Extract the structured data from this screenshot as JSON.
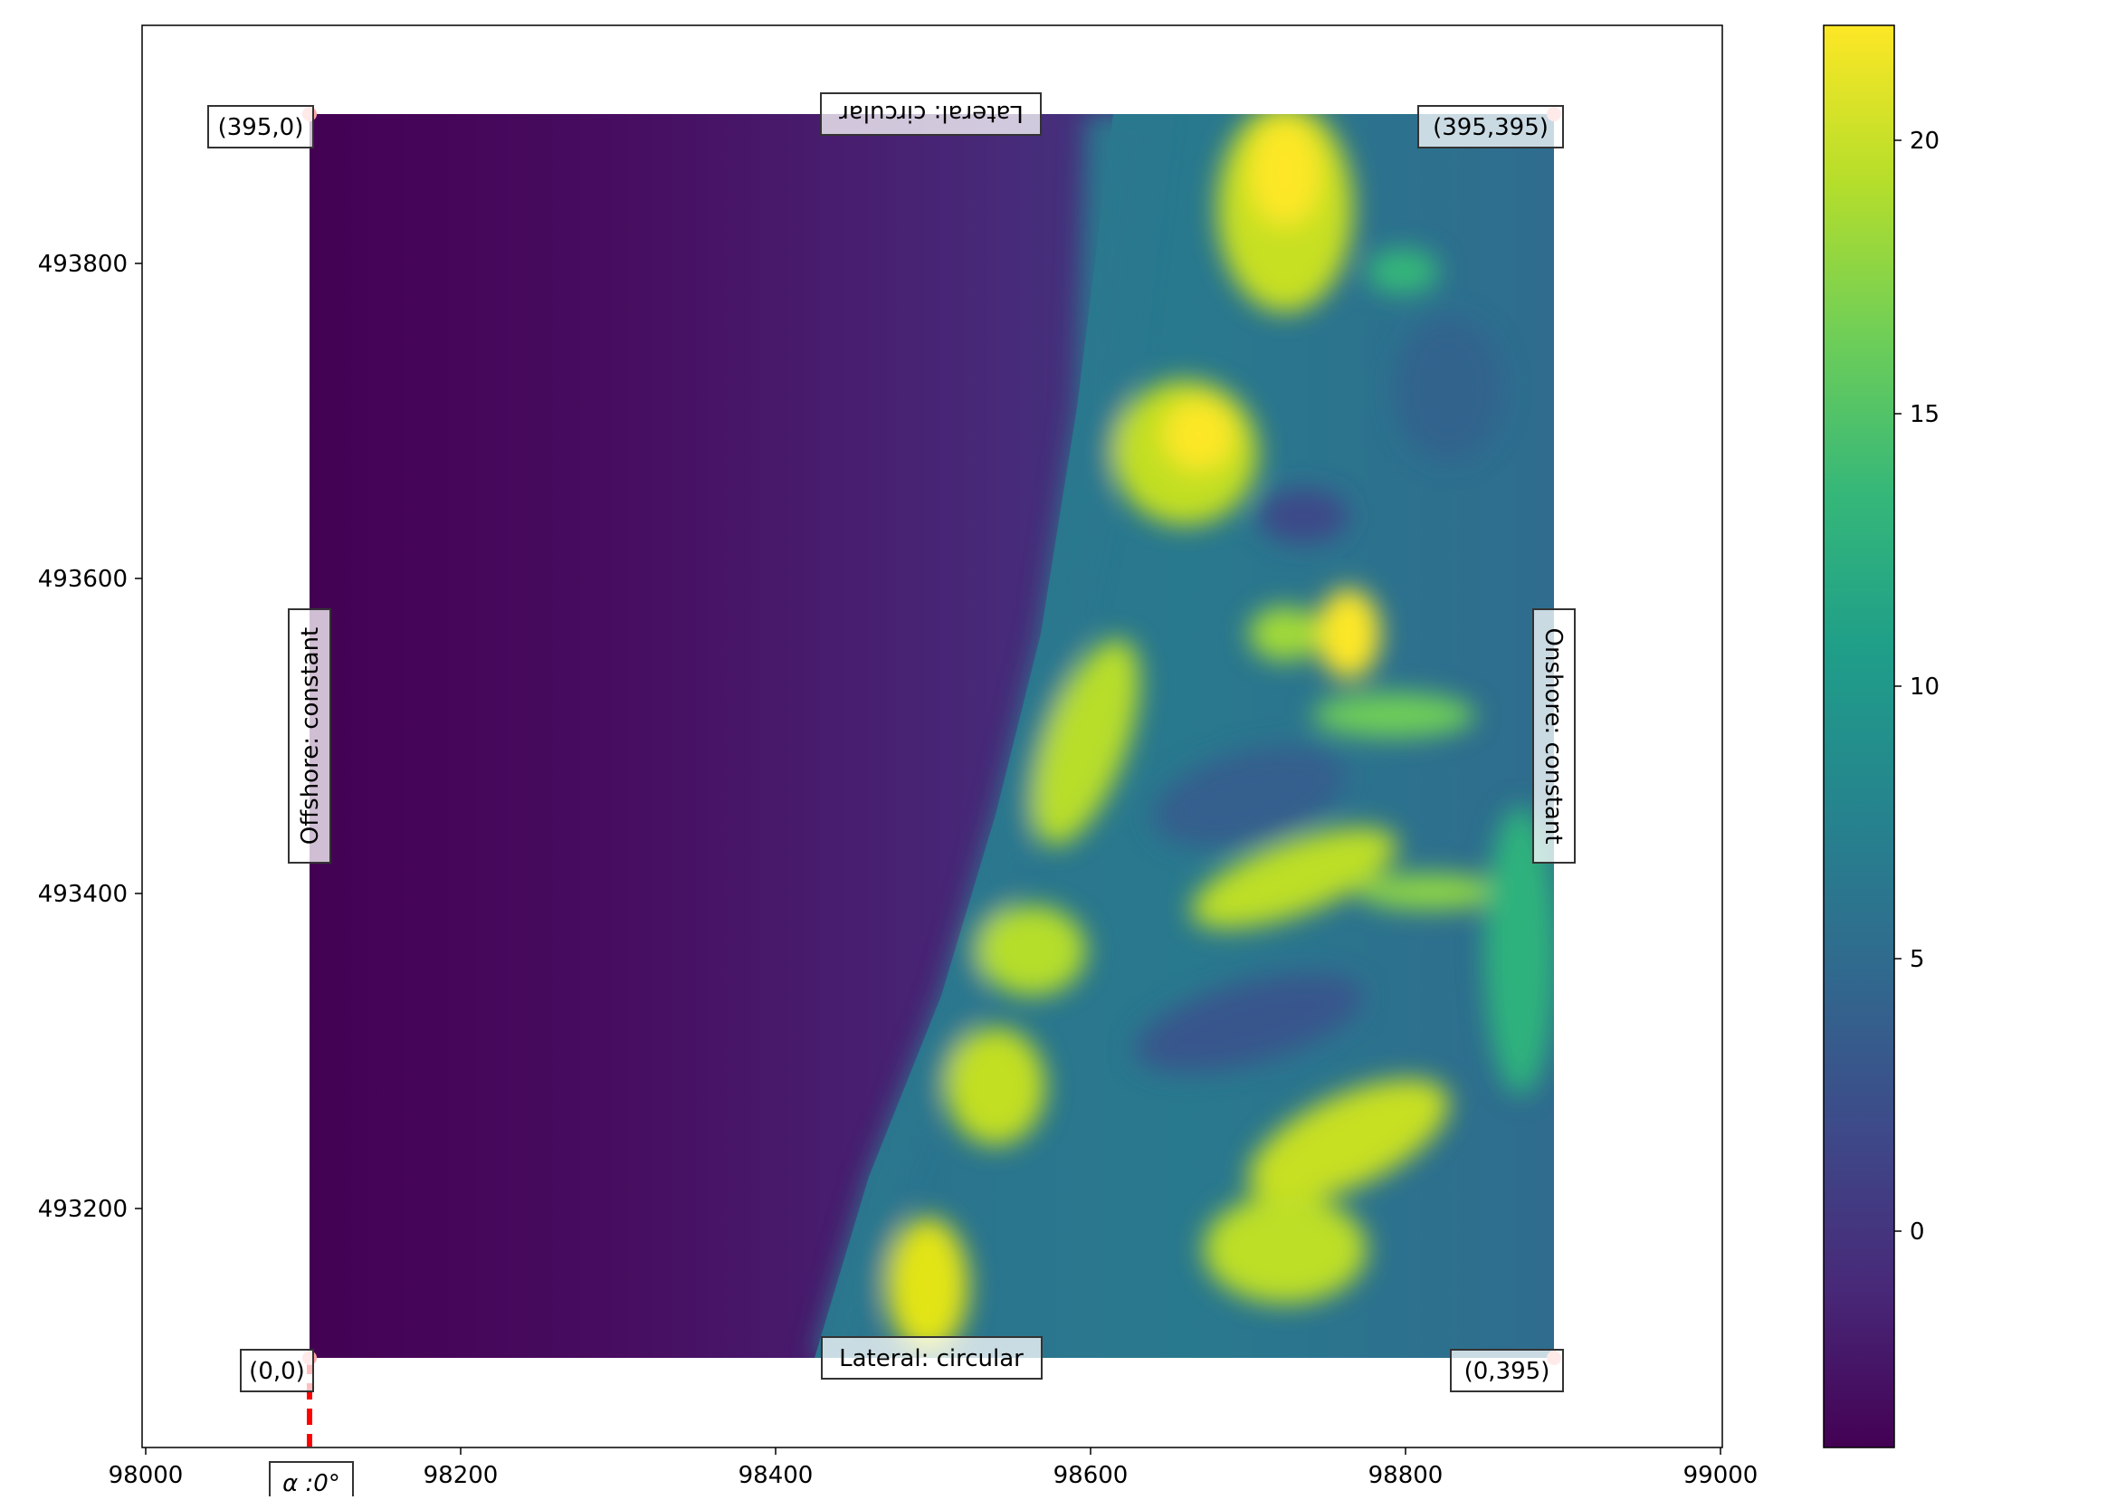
{
  "chart_data": {
    "type": "heatmap",
    "title": "",
    "xlabel": "",
    "ylabel": "",
    "x_ticks": [
      98000,
      98200,
      98400,
      98600,
      98800,
      99000
    ],
    "y_ticks": [
      493200,
      493400,
      493600,
      493800
    ],
    "xlim": [
      97997,
      99000
    ],
    "ylim": [
      493045,
      493965
    ],
    "grid": false,
    "domain_extent": {
      "x": [
        98104,
        98895
      ],
      "y": [
        493103,
        493895
      ]
    },
    "colorbar": {
      "colormap": "viridis",
      "range": [
        -4,
        22
      ],
      "ticks": [
        0,
        5,
        10,
        15,
        20
      ],
      "colors": [
        "#440154",
        "#482878",
        "#3e4989",
        "#31688e",
        "#26828e",
        "#1f9e89",
        "#35b779",
        "#6ece58",
        "#b5de2b",
        "#fde725"
      ]
    },
    "boundary_labels": {
      "top": "Lateral: circular",
      "bottom": "Lateral: circular",
      "left": "Offshore: constant",
      "right": "Onshore: constant"
    },
    "corner_labels": {
      "bottom_left": "(0,0)",
      "top_left": "(395,0)",
      "top_right": "(395,395)",
      "bottom_right": "(0,395)"
    },
    "angle_label": "α :0°",
    "marker_color": "#ffaaaa",
    "direction_line_color": "#ff0000"
  }
}
